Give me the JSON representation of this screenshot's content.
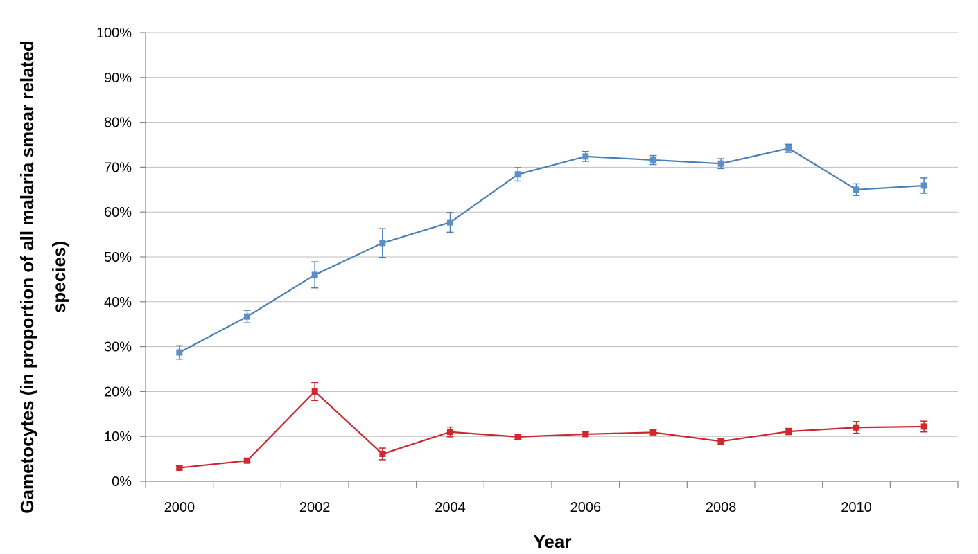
{
  "chart_data": {
    "type": "line",
    "xlabel": "Year",
    "ylabel_lines": [
      "Gametocytes (in proportion of all malaria smear related",
      "species)"
    ],
    "ylim": [
      0,
      100
    ],
    "y_ticks": [
      "0%",
      "10%",
      "20%",
      "30%",
      "40%",
      "50%",
      "60%",
      "70%",
      "80%",
      "90%",
      "100%"
    ],
    "y_tick_values": [
      0,
      10,
      20,
      30,
      40,
      50,
      60,
      70,
      80,
      90,
      100
    ],
    "x": [
      2000,
      2001,
      2002,
      2003,
      2004,
      2005,
      2006,
      2007,
      2008,
      2009,
      2010,
      2011
    ],
    "x_tick_labels": [
      "2000",
      "2002",
      "2004",
      "2006",
      "2008",
      "2010"
    ],
    "x_tick_label_values": [
      2000,
      2002,
      2004,
      2006,
      2008,
      2010
    ],
    "grid": true,
    "legend": "none",
    "series": [
      {
        "color": "#4A7FB5",
        "marker_color": "#5B8FC9",
        "values": [
          28.7,
          36.7,
          46.0,
          53.1,
          57.7,
          68.4,
          72.4,
          71.6,
          70.8,
          74.2,
          65.0,
          65.9
        ],
        "errors": [
          1.5,
          1.4,
          2.9,
          3.2,
          2.2,
          1.5,
          1.1,
          1.0,
          1.1,
          0.9,
          1.3,
          1.7
        ]
      },
      {
        "color": "#C8282F",
        "marker_color": "#D3272E",
        "values": [
          3.0,
          4.6,
          20.0,
          6.1,
          11.0,
          9.9,
          10.5,
          10.9,
          8.9,
          11.1,
          12.0,
          12.2
        ],
        "errors": [
          0.4,
          0.4,
          2.0,
          1.3,
          1.1,
          0.6,
          0.5,
          0.5,
          0.6,
          0.7,
          1.3,
          1.2
        ]
      }
    ]
  }
}
